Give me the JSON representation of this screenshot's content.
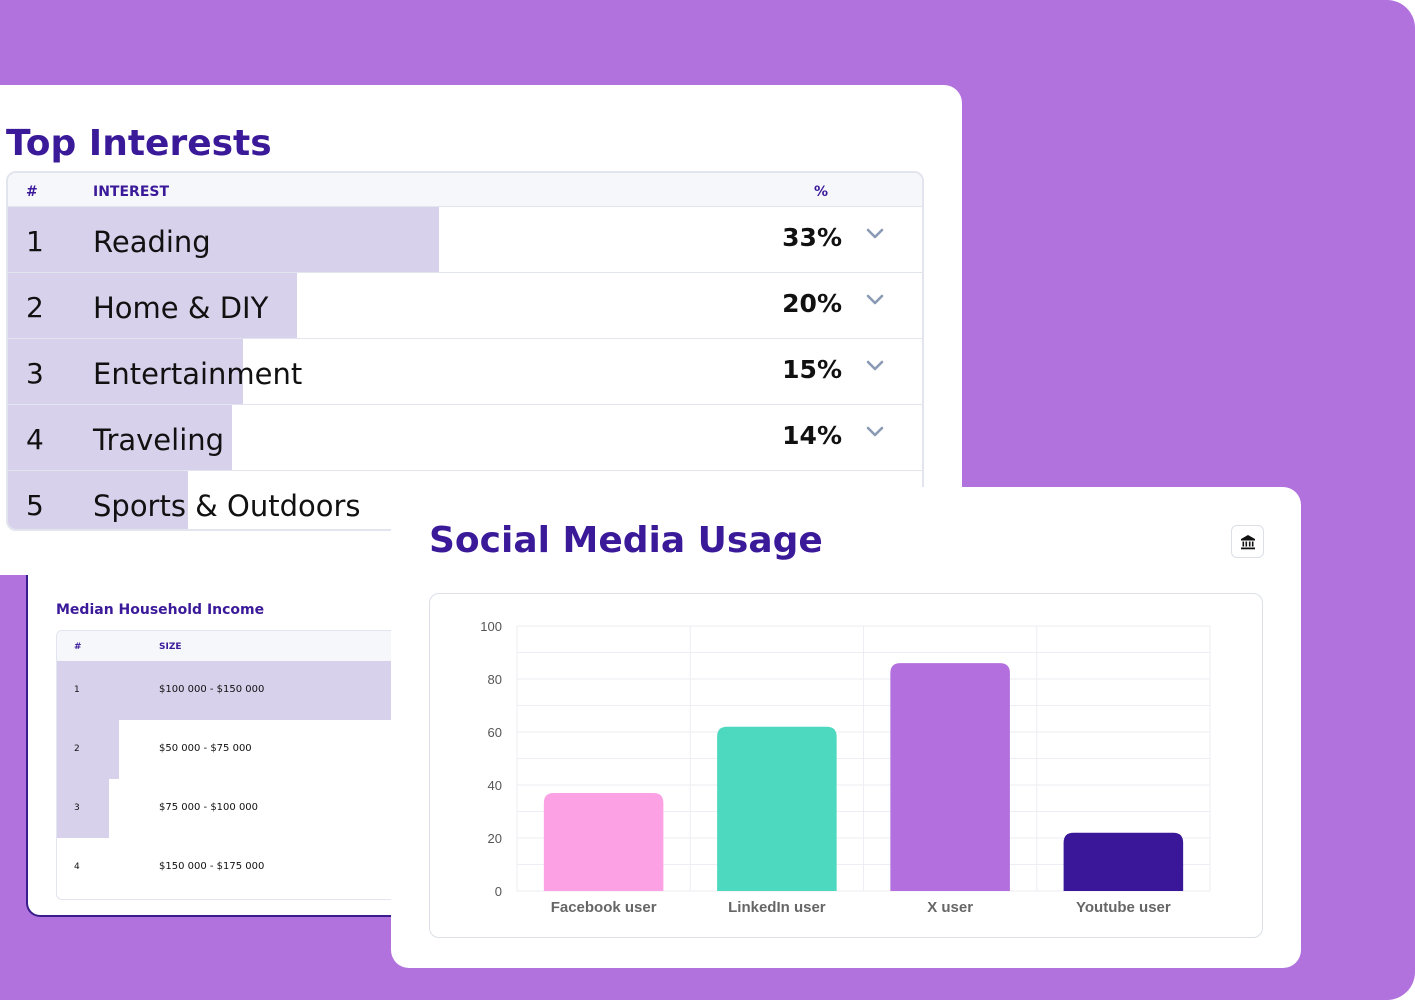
{
  "top_interests": {
    "title": "Top Interests",
    "headers": {
      "num": "#",
      "interest": "INTEREST",
      "pct": "%"
    },
    "rows": [
      {
        "num": "1",
        "name": "Reading",
        "pct": "33%",
        "share": 0.33
      },
      {
        "num": "2",
        "name": "Home & DIY",
        "pct": "20%",
        "share": 0.2
      },
      {
        "num": "3",
        "name": "Entertainment",
        "pct": "15%",
        "share": 0.15
      },
      {
        "num": "4",
        "name": "Traveling",
        "pct": "14%",
        "share": 0.14
      },
      {
        "num": "5",
        "name": "Sports & Outdoors",
        "pct": "",
        "share": 0.1
      }
    ]
  },
  "income": {
    "title": "Median Household Income",
    "headers": {
      "num": "#",
      "size": "SIZE"
    },
    "rows": [
      {
        "num": "1",
        "size": "$100 000 - $150 000"
      },
      {
        "num": "2",
        "size": "$50 000 - $75 000"
      },
      {
        "num": "3",
        "size": "$75 000 - $100 000"
      },
      {
        "num": "4",
        "size": "$150 000 - $175 000"
      }
    ]
  },
  "social": {
    "title": "Social Media Usage",
    "export_icon": "bank-icon"
  },
  "chart_data": {
    "type": "bar",
    "categories": [
      "Facebook user",
      "LinkedIn user",
      "X user",
      "Youtube user"
    ],
    "values": [
      37,
      62,
      86,
      22
    ],
    "colors": [
      "#fca1e3",
      "#4dd9c0",
      "#b26fdd",
      "#3a1799"
    ],
    "ylim": [
      0,
      100
    ],
    "yticks": [
      0,
      20,
      40,
      60,
      80,
      100
    ],
    "grid": true
  }
}
